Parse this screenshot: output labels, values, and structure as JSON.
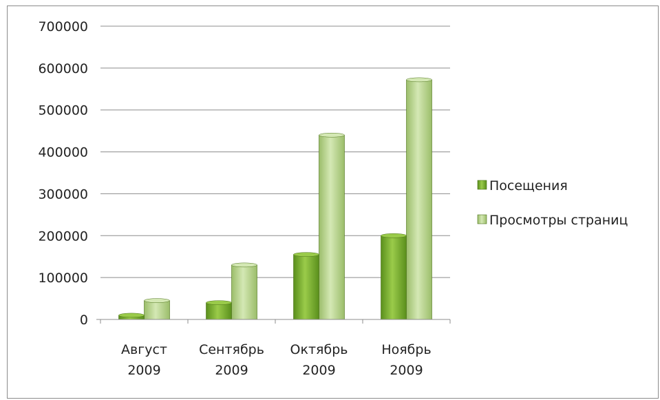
{
  "chart_data": {
    "type": "bar",
    "categories": [
      [
        "Август",
        "2009"
      ],
      [
        "Сентябрь",
        "2009"
      ],
      [
        "Октябрь",
        "2009"
      ],
      [
        "Ноябрь",
        "2009"
      ]
    ],
    "series": [
      {
        "name": "Посещения",
        "values": [
          10000,
          40000,
          155000,
          200000
        ],
        "color": "#5a8f1c",
        "color_light": "#9acb4a"
      },
      {
        "name": "Просмотры страниц",
        "values": [
          45000,
          130000,
          440000,
          572000
        ],
        "color": "#9bbd6a",
        "color_light": "#d4e8b4"
      }
    ],
    "y_ticks": [
      "0",
      "100000",
      "200000",
      "300000",
      "400000",
      "500000",
      "600000",
      "700000"
    ],
    "ylim": [
      0,
      700000
    ],
    "grid": true,
    "legend_position": "right",
    "title": "",
    "xlabel": "",
    "ylabel": ""
  }
}
